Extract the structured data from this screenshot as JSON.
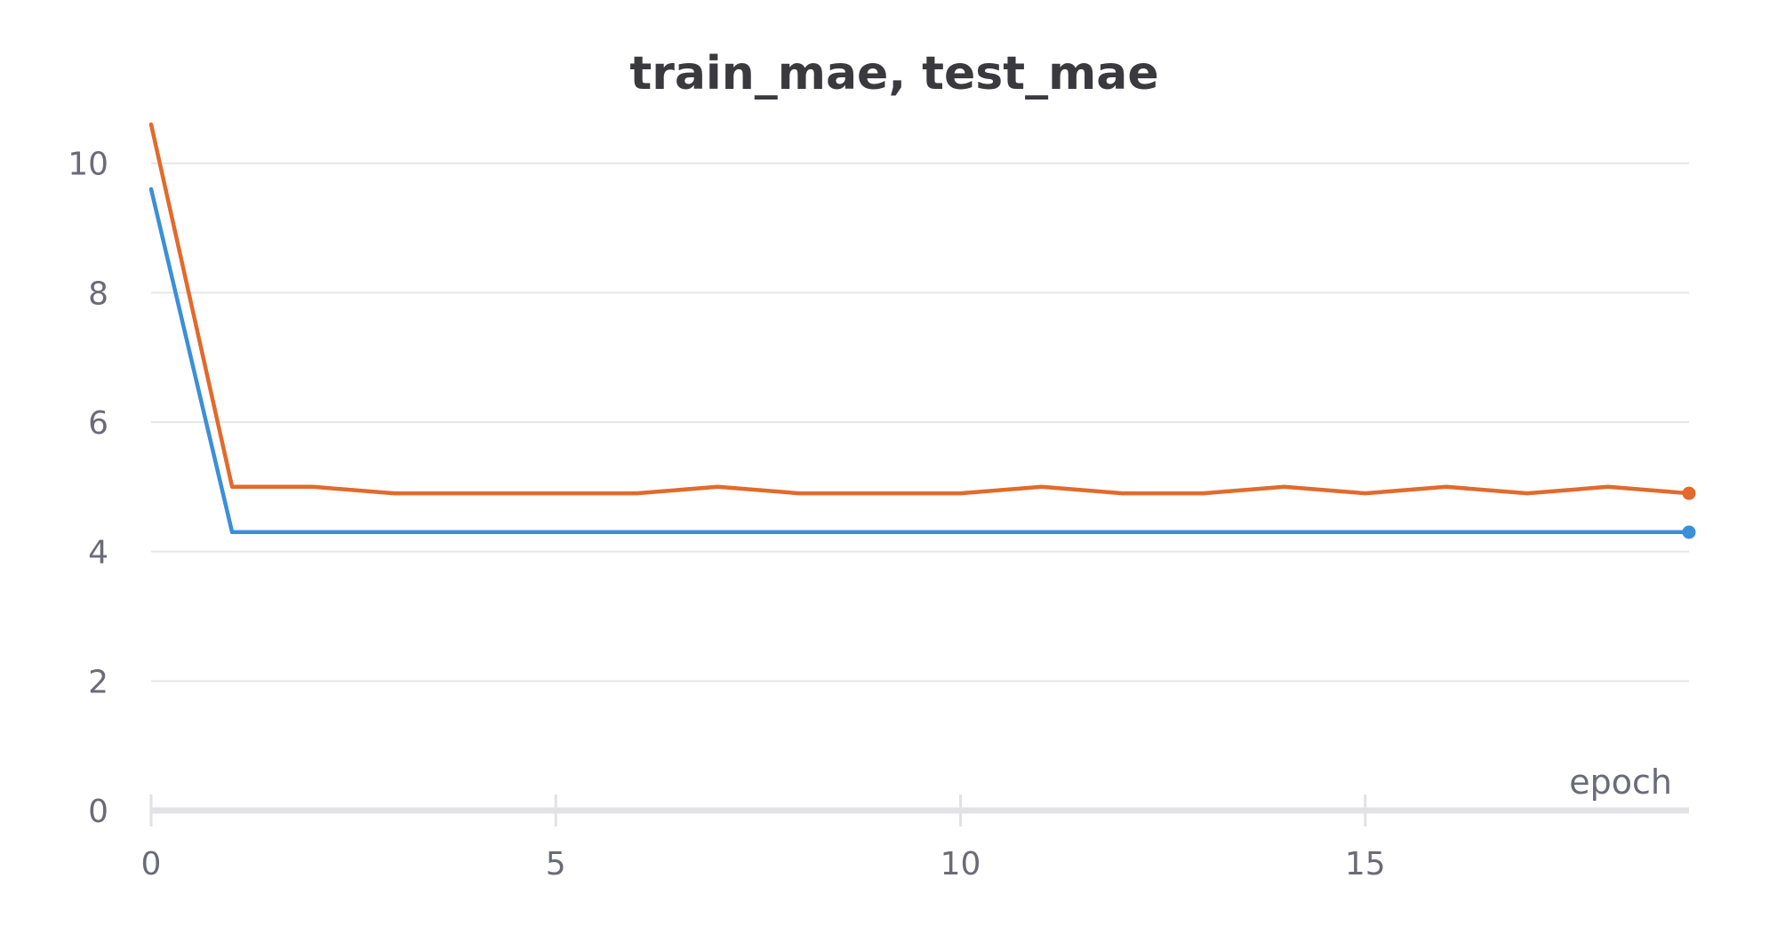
{
  "chart_data": {
    "type": "line",
    "title": "train_mae, test_mae",
    "xlabel": "epoch",
    "ylabel": "",
    "xlim": [
      0,
      19
    ],
    "ylim": [
      0,
      10.6
    ],
    "x_ticks": [
      "0",
      "5",
      "10",
      "15"
    ],
    "y_ticks": [
      "0",
      "2",
      "4",
      "6",
      "8",
      "10"
    ],
    "grid": true,
    "x": [
      0,
      1,
      2,
      3,
      4,
      5,
      6,
      7,
      8,
      9,
      10,
      11,
      12,
      13,
      14,
      15,
      16,
      17,
      18,
      19
    ],
    "series": [
      {
        "color": "#3b8fd8",
        "values": [
          9.6,
          4.3,
          4.3,
          4.3,
          4.3,
          4.3,
          4.3,
          4.3,
          4.3,
          4.3,
          4.3,
          4.3,
          4.3,
          4.3,
          4.3,
          4.3,
          4.3,
          4.3,
          4.3,
          4.3
        ]
      },
      {
        "color": "#e26a2c",
        "values": [
          10.6,
          5.0,
          5.0,
          4.9,
          4.9,
          4.9,
          4.9,
          5.0,
          4.9,
          4.9,
          4.9,
          5.0,
          4.9,
          4.9,
          5.0,
          4.9,
          5.0,
          4.9,
          5.0,
          4.9
        ]
      }
    ]
  }
}
